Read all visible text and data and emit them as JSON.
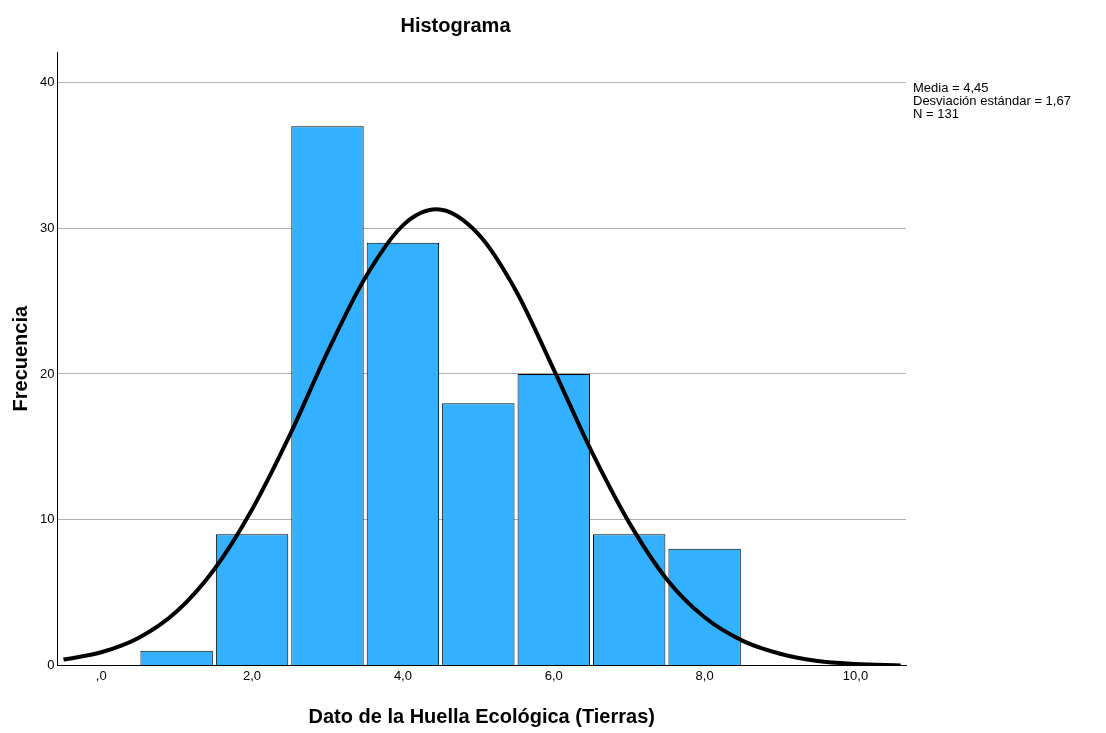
{
  "chart_data": {
    "type": "histogram",
    "title": "Histograma",
    "xlabel": "Dato de la Huella Ecológica (Tierras)",
    "ylabel": "Frecuencia",
    "series": [
      {
        "type": "histogram",
        "color": "#33b0ff",
        "bins": [
          0.5,
          1.5,
          2.5,
          3.5,
          4.5,
          5.5,
          6.5,
          7.5,
          8.5
        ],
        "values": [
          1,
          9,
          37,
          29,
          18,
          20,
          9,
          8
        ]
      },
      {
        "type": "line",
        "color": "#000000",
        "x": [
          -0.5,
          0,
          0.5,
          1,
          1.5,
          2,
          2.5,
          3,
          3.5,
          4,
          4.45,
          5,
          5.5,
          6,
          6.5,
          7,
          7.5,
          8,
          8.5,
          9,
          9.5,
          10,
          10.6
        ],
        "values": [
          0.4,
          0.9,
          1.9,
          3.7,
          6.6,
          10.7,
          15.8,
          21.5,
          26.6,
          30.2,
          31.3,
          29.6,
          25.7,
          20.3,
          14.7,
          9.8,
          5.9,
          3.3,
          1.7,
          0.8,
          0.3,
          0.1,
          0.0
        ]
      }
    ],
    "xlim": [
      -0.58,
      10.67
    ],
    "xticks": [
      {
        "value": 0,
        "label": ",0"
      },
      {
        "value": 2,
        "label": "2,0"
      },
      {
        "value": 4,
        "label": "4,0"
      },
      {
        "value": 6,
        "label": "6,0"
      },
      {
        "value": 8,
        "label": "8,0"
      },
      {
        "value": 10,
        "label": "10,0"
      }
    ],
    "ylim": [
      0,
      42.1
    ],
    "yticks": [
      0,
      10,
      20,
      30,
      40
    ],
    "grid": "y",
    "legend": false,
    "marker": "none",
    "line_style": "solid",
    "annotations": [
      "Media = 4,45",
      "Desviación estándar = 1,67",
      "N = 131"
    ]
  }
}
